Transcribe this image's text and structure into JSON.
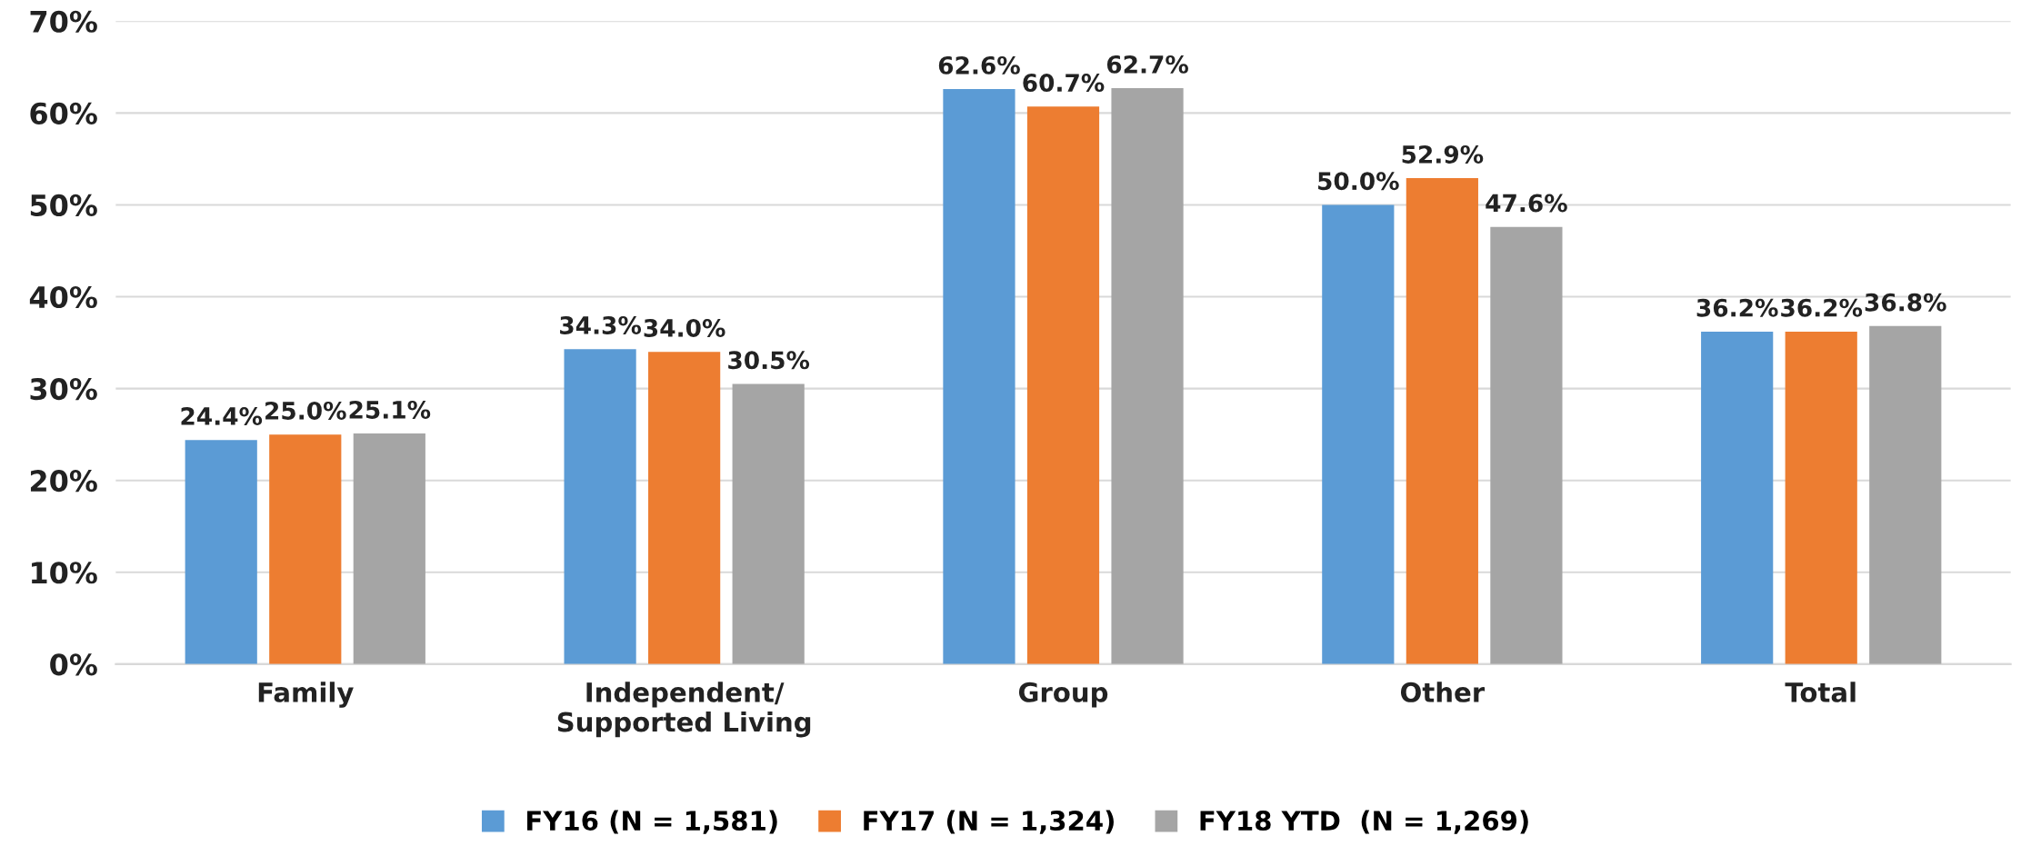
{
  "chart_data": {
    "type": "bar",
    "categories": [
      "Family",
      "Independent/\nSupported Living",
      "Group",
      "Other",
      "Total"
    ],
    "series": [
      {
        "name": "FY16 (N = 1,581)",
        "color": "#5b9bd5",
        "values": [
          24.4,
          34.3,
          62.6,
          50.0,
          36.2
        ],
        "value_labels": [
          "24.4%",
          "34.3%",
          "62.6%",
          "50.0%",
          "36.2%"
        ]
      },
      {
        "name": "FY17 (N = 1,324)",
        "color": "#ed7d31",
        "values": [
          25.0,
          34.0,
          60.7,
          52.9,
          36.2
        ],
        "value_labels": [
          "25.0%",
          "34.0%",
          "60.7%",
          "52.9%",
          "36.2%"
        ]
      },
      {
        "name": "FY18 YTD  (N = 1,269)",
        "color": "#a5a5a5",
        "values": [
          25.1,
          30.5,
          62.7,
          47.6,
          36.8
        ],
        "value_labels": [
          "25.1%",
          "30.5%",
          "62.7%",
          "47.6%",
          "36.8%"
        ]
      }
    ],
    "ylim": [
      0,
      70
    ],
    "yticks": [
      {
        "value": 0,
        "label": "0%"
      },
      {
        "value": 10,
        "label": "10%"
      },
      {
        "value": 20,
        "label": "20%"
      },
      {
        "value": 30,
        "label": "30%"
      },
      {
        "value": 40,
        "label": "40%"
      },
      {
        "value": 50,
        "label": "50%"
      },
      {
        "value": 60,
        "label": "60%"
      },
      {
        "value": 70,
        "label": "70%"
      }
    ],
    "grid": "y",
    "legend": "bottom"
  }
}
